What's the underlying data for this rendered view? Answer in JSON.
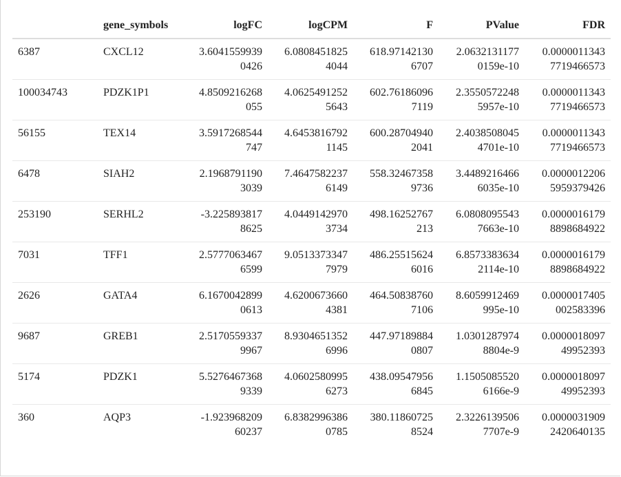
{
  "table": {
    "headers": [
      "",
      "gene_symbols",
      "logFC",
      "logCPM",
      "F",
      "PValue",
      "FDR"
    ],
    "rows": [
      {
        "id": "6387",
        "gene": "CXCL12",
        "logFC": [
          "3.6041559939",
          "0426"
        ],
        "logCPM": [
          "6.0808451825",
          "4044"
        ],
        "F": [
          "618.97142130",
          "6707"
        ],
        "PValue": [
          "2.0632131177",
          "0159e-10"
        ],
        "FDR": [
          "0.0000011343",
          "7719466573"
        ]
      },
      {
        "id": "100034743",
        "gene": "PDZK1P1",
        "logFC": [
          "4.8509216268",
          "055"
        ],
        "logCPM": [
          "4.0625491252",
          "5643"
        ],
        "F": [
          "602.76186096",
          "7119"
        ],
        "PValue": [
          "2.3550572248",
          "5957e-10"
        ],
        "FDR": [
          "0.0000011343",
          "7719466573"
        ]
      },
      {
        "id": "56155",
        "gene": "TEX14",
        "logFC": [
          "3.5917268544",
          "747"
        ],
        "logCPM": [
          "4.6453816792",
          "1145"
        ],
        "F": [
          "600.28704940",
          "2041"
        ],
        "PValue": [
          "2.4038508045",
          "4701e-10"
        ],
        "FDR": [
          "0.0000011343",
          "7719466573"
        ]
      },
      {
        "id": "6478",
        "gene": "SIAH2",
        "logFC": [
          "2.1968791190",
          "3039"
        ],
        "logCPM": [
          "7.4647582237",
          "6149"
        ],
        "F": [
          "558.32467358",
          "9736"
        ],
        "PValue": [
          "3.4489216466",
          "6035e-10"
        ],
        "FDR": [
          "0.0000012206",
          "5959379426"
        ]
      },
      {
        "id": "253190",
        "gene": "SERHL2",
        "logFC": [
          "-3.225893817",
          "8625"
        ],
        "logCPM": [
          "4.0449142970",
          "3734"
        ],
        "F": [
          "498.16252767",
          "213"
        ],
        "PValue": [
          "6.0808095543",
          "7663e-10"
        ],
        "FDR": [
          "0.0000016179",
          "8898684922"
        ]
      },
      {
        "id": "7031",
        "gene": "TFF1",
        "logFC": [
          "2.5777063467",
          "6599"
        ],
        "logCPM": [
          "9.0513373347",
          "7979"
        ],
        "F": [
          "486.25515624",
          "6016"
        ],
        "PValue": [
          "6.8573383634",
          "2114e-10"
        ],
        "FDR": [
          "0.0000016179",
          "8898684922"
        ]
      },
      {
        "id": "2626",
        "gene": "GATA4",
        "logFC": [
          "6.1670042899",
          "0613"
        ],
        "logCPM": [
          "4.6200673660",
          "4381"
        ],
        "F": [
          "464.50838760",
          "7106"
        ],
        "PValue": [
          "8.6059912469",
          "995e-10"
        ],
        "FDR": [
          "0.0000017405",
          "002583396"
        ]
      },
      {
        "id": "9687",
        "gene": "GREB1",
        "logFC": [
          "2.5170559337",
          "9967"
        ],
        "logCPM": [
          "8.9304651352",
          "6996"
        ],
        "F": [
          "447.97189884",
          "0807"
        ],
        "PValue": [
          "1.0301287974",
          "8804e-9"
        ],
        "FDR": [
          "0.0000018097",
          "49952393"
        ]
      },
      {
        "id": "5174",
        "gene": "PDZK1",
        "logFC": [
          "5.5276467368",
          "9339"
        ],
        "logCPM": [
          "4.0602580995",
          "6273"
        ],
        "F": [
          "438.09547956",
          "6845"
        ],
        "PValue": [
          "1.1505085520",
          "6166e-9"
        ],
        "FDR": [
          "0.0000018097",
          "49952393"
        ]
      },
      {
        "id": "360",
        "gene": "AQP3",
        "logFC": [
          "-1.923968209",
          "60237"
        ],
        "logCPM": [
          "6.8382996386",
          "0785"
        ],
        "F": [
          "380.11860725",
          "8524"
        ],
        "PValue": [
          "2.3226139506",
          "7707e-9"
        ],
        "FDR": [
          "0.0000031909",
          "2420640135"
        ]
      }
    ]
  }
}
